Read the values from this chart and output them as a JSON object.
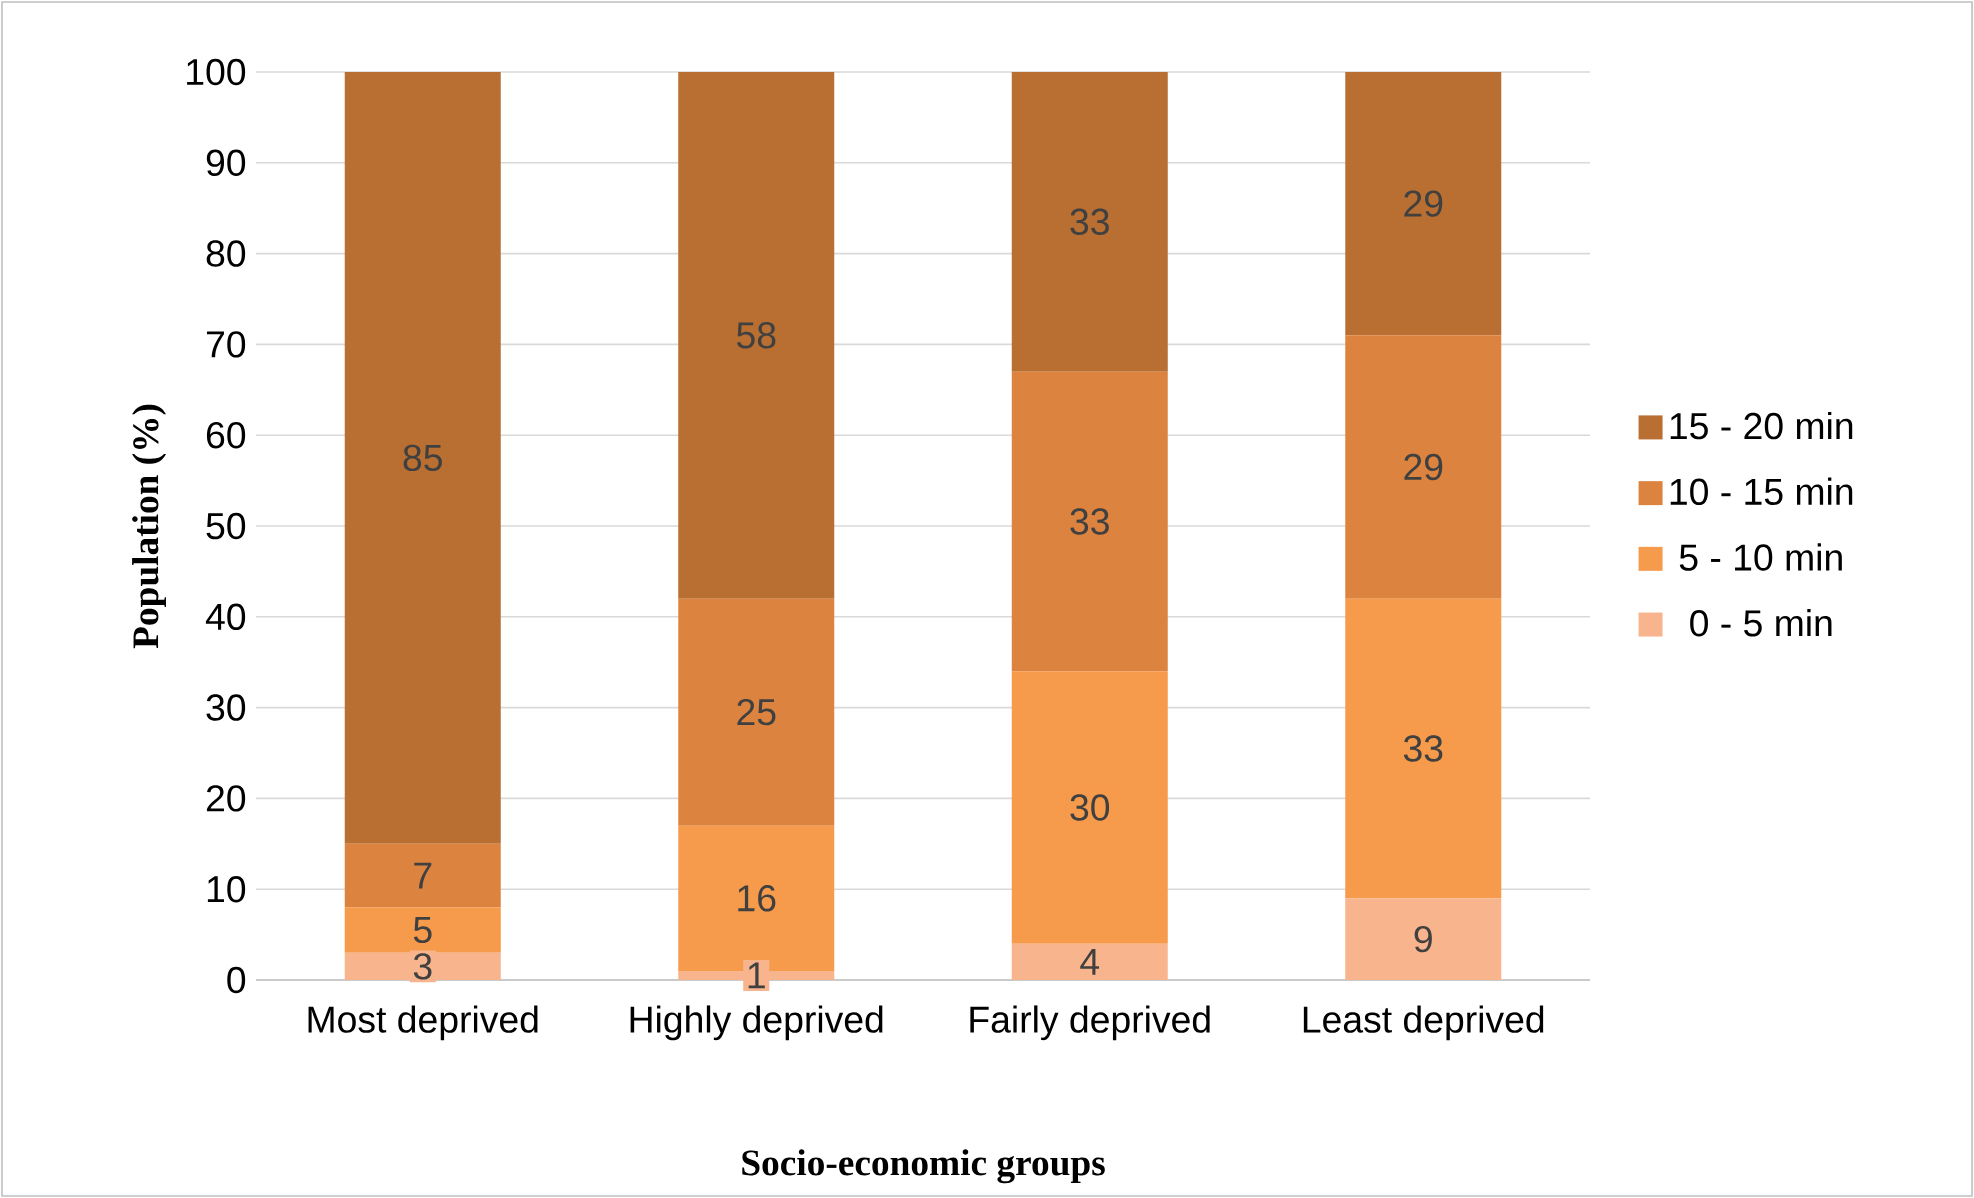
{
  "chart_data": {
    "type": "bar",
    "stacked": true,
    "xlabel": "Socio-economic groups",
    "ylabel": "Population (%)",
    "categories": [
      "Most deprived",
      "Highly deprived",
      "Fairly deprived",
      "Least deprived"
    ],
    "series": [
      {
        "name": "0 - 5 min",
        "color": "#f8b48c",
        "values": [
          3,
          1,
          4,
          9
        ]
      },
      {
        "name": "5 - 10 min",
        "color": "#f69a4b",
        "values": [
          5,
          16,
          30,
          33
        ]
      },
      {
        "name": "10 - 15 min",
        "color": "#dc843f",
        "values": [
          7,
          25,
          33,
          29
        ]
      },
      {
        "name": "15 - 20 min",
        "color": "#b86f31",
        "values": [
          85,
          58,
          33,
          29
        ]
      }
    ],
    "ylim": [
      0,
      100
    ],
    "yticks": [
      0,
      10,
      20,
      30,
      40,
      50,
      60,
      70,
      80,
      90,
      100
    ],
    "grid": "y",
    "legend": "right",
    "data_labels": true
  }
}
